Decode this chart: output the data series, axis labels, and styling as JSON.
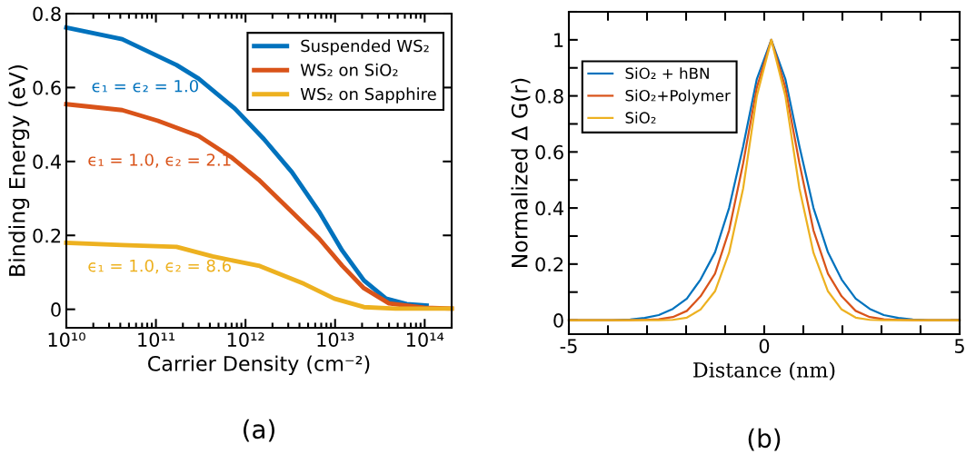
{
  "chart_data": [
    {
      "type": "line",
      "xlabel": "Carrier Density (cm⁻²)",
      "ylabel": "Binding Energy (eV)",
      "log": "x",
      "grid": false,
      "legend": "top right",
      "line_style": "solid",
      "marker": "none",
      "xlim": [
        10000000000.0,
        200000000000000.0
      ],
      "ylim": [
        -0.05,
        0.8
      ],
      "xticks": [
        {
          "value": 10000000000.0,
          "label": "10¹⁰"
        },
        {
          "value": 100000000000.0,
          "label": "10¹¹"
        },
        {
          "value": 1000000000000.0,
          "label": "10¹²"
        },
        {
          "value": 10000000000000.0,
          "label": "10¹³"
        },
        {
          "value": 100000000000000.0,
          "label": "10¹⁴"
        }
      ],
      "yticks": [
        0,
        0.2,
        0.4,
        0.6,
        0.8
      ],
      "series": [
        {
          "name": "Suspended WS₂",
          "color": "#0072bd",
          "x": [
            10000000000.0,
            42000000000.0,
            170000000000.0,
            300000000000.0,
            760000000000.0,
            1600000000000.0,
            3300000000000.0,
            6600000000000.0,
            12000000000000.0,
            21000000000000.0,
            37000000000000.0,
            63000000000000.0,
            105000000000000.0
          ],
          "values": [
            0.762,
            0.731,
            0.661,
            0.624,
            0.543,
            0.461,
            0.371,
            0.265,
            0.159,
            0.078,
            0.029,
            0.014,
            0.01
          ]
        },
        {
          "name": "WS₂ on SiO₂",
          "color": "#d95319",
          "x": [
            10000000000.0,
            42000000000.0,
            105000000000.0,
            300000000000.0,
            690000000000.0,
            1400000000000.0,
            3000000000000.0,
            6600000000000.0,
            12000000000000.0,
            21000000000000.0,
            40000000000000.0,
            100000000000000.0,
            200000000000000.0
          ],
          "values": [
            0.555,
            0.539,
            0.51,
            0.469,
            0.412,
            0.351,
            0.273,
            0.192,
            0.118,
            0.057,
            0.016,
            0.004,
            0.002
          ]
        },
        {
          "name": "WS₂ on Sapphire",
          "color": "#edb120",
          "x": [
            10000000000.0,
            42000000000.0,
            170000000000.0,
            430000000000.0,
            1400000000000.0,
            4500000000000.0,
            9800000000000.0,
            21000000000000.0,
            47000000000000.0,
            200000000000000.0
          ],
          "values": [
            0.18,
            0.174,
            0.169,
            0.143,
            0.118,
            0.069,
            0.029,
            0.006,
            0.002,
            0.002
          ]
        }
      ],
      "annotations": [
        "ϵ₁ = ϵ₂ = 1.0",
        "ϵ₁ = 1.0, ϵ₂ = 2.1",
        "ϵ₁ = 1.0, ϵ₂ = 8.6",
        "(a)"
      ]
    },
    {
      "type": "line",
      "xlabel": "Distance (nm)",
      "ylabel": "Normalized Δ G(r)",
      "grid": false,
      "legend": "top left",
      "line_style": "solid",
      "marker": "none",
      "xlim": [
        -5,
        5
      ],
      "ylim": [
        -0.05,
        1.1
      ],
      "xticks": [
        -5,
        {
          "value": -4,
          "label": null
        },
        {
          "value": -3,
          "label": null
        },
        {
          "value": -2,
          "label": null
        },
        {
          "value": -1,
          "label": null
        },
        0,
        {
          "value": 1,
          "label": null
        },
        {
          "value": 2,
          "label": null
        },
        {
          "value": 3,
          "label": null
        },
        {
          "value": 4,
          "label": null
        },
        5
      ],
      "yticks": [
        0,
        {
          "value": 0.1,
          "label": null
        },
        0.2,
        {
          "value": 0.3,
          "label": null
        },
        0.4,
        {
          "value": 0.5,
          "label": null
        },
        0.6,
        {
          "value": 0.7,
          "label": null
        },
        0.8,
        {
          "value": 0.9,
          "label": null
        },
        1,
        {
          "value": 1.1,
          "label": null
        }
      ],
      "x": [
        -5,
        -3.9,
        -3.43,
        -3.06,
        -2.7,
        -2.34,
        -1.98,
        -1.63,
        -1.26,
        -0.9,
        -0.54,
        -0.19,
        0.18,
        0.54,
        0.9,
        1.26,
        1.63,
        1.98,
        2.34,
        2.7,
        3.06,
        3.43,
        3.8,
        4.2,
        5
      ],
      "series": [
        {
          "name": "SiO₂ + hBN",
          "color": "#0072bd",
          "values": [
            0,
            0,
            0.002,
            0.008,
            0.018,
            0.04,
            0.077,
            0.145,
            0.242,
            0.4,
            0.62,
            0.86,
            1,
            0.86,
            0.62,
            0.4,
            0.242,
            0.145,
            0.077,
            0.04,
            0.018,
            0.008,
            0.002,
            0,
            0
          ]
        },
        {
          "name": "SiO₂+Polymer",
          "color": "#d95319",
          "values": [
            0,
            0,
            0,
            0.001,
            0.003,
            0.011,
            0.033,
            0.085,
            0.166,
            0.32,
            0.56,
            0.83,
            1,
            0.83,
            0.56,
            0.32,
            0.166,
            0.085,
            0.033,
            0.011,
            0.003,
            0.001,
            0,
            0,
            0
          ]
        },
        {
          "name": "SiO₂",
          "color": "#edb120",
          "values": [
            0,
            0,
            0,
            0,
            0,
            0.001,
            0.009,
            0.038,
            0.103,
            0.24,
            0.47,
            0.8,
            1,
            0.8,
            0.47,
            0.24,
            0.103,
            0.038,
            0.009,
            0.001,
            0,
            0,
            0,
            0,
            0
          ]
        }
      ],
      "annotations": [
        "(b)"
      ]
    }
  ]
}
